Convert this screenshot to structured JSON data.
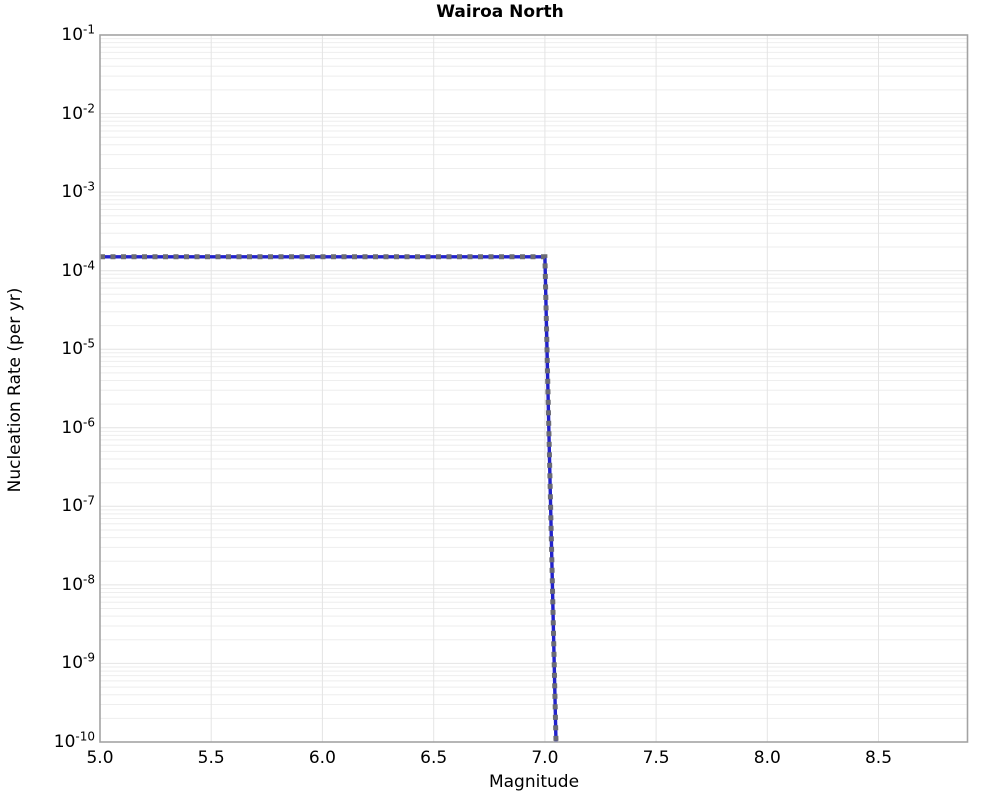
{
  "title": "Wairoa North",
  "chart_data": {
    "type": "line",
    "title": "Wairoa North",
    "xlabel": "Magnitude",
    "ylabel": "Nucleation Rate (per yr)",
    "xlim": [
      5.0,
      8.9
    ],
    "yscale": "log",
    "ylim": [
      1e-10,
      0.1
    ],
    "ylim_exponents": [
      -10,
      -1
    ],
    "grid": {
      "shown": true,
      "vertical_at": [
        5.5,
        6.0,
        6.5,
        7.0,
        7.5,
        8.0,
        8.5
      ],
      "horizontal": "log-decades-with-minors",
      "minor_color": "#eeeeee",
      "major_color": "#e4e4e4"
    },
    "legend": "none",
    "x_ticks": [
      {
        "value": 5.0,
        "label": "5.0"
      },
      {
        "value": 5.5,
        "label": "5.5"
      },
      {
        "value": 6.0,
        "label": "6.0"
      },
      {
        "value": 6.5,
        "label": "6.5"
      },
      {
        "value": 7.0,
        "label": "7.0"
      },
      {
        "value": 7.5,
        "label": "7.5"
      },
      {
        "value": 8.0,
        "label": "8.0"
      },
      {
        "value": 8.5,
        "label": "8.5"
      }
    ],
    "y_tick_base": "10",
    "y_tick_exponents": [
      -1,
      -2,
      -3,
      -4,
      -5,
      -6,
      -7,
      -8,
      -9,
      -10
    ],
    "series": [
      {
        "name": "nucleation-rate-solid",
        "style": "solid",
        "color": "#2222cc",
        "width": 3.4,
        "points": [
          [
            5.0,
            0.00015
          ],
          [
            7.0,
            0.00015
          ],
          [
            7.05,
            1e-10
          ]
        ]
      },
      {
        "name": "nucleation-rate-dashed-overlay",
        "style": "dashed",
        "color": "#6b6b74",
        "width": 5,
        "dash": [
          5,
          5.5
        ],
        "points": [
          [
            5.0,
            0.00015
          ],
          [
            7.0,
            0.00015
          ],
          [
            7.05,
            1e-10
          ]
        ]
      }
    ],
    "spine_color": "#a3a3a3",
    "plot_background": "#ffffff"
  }
}
